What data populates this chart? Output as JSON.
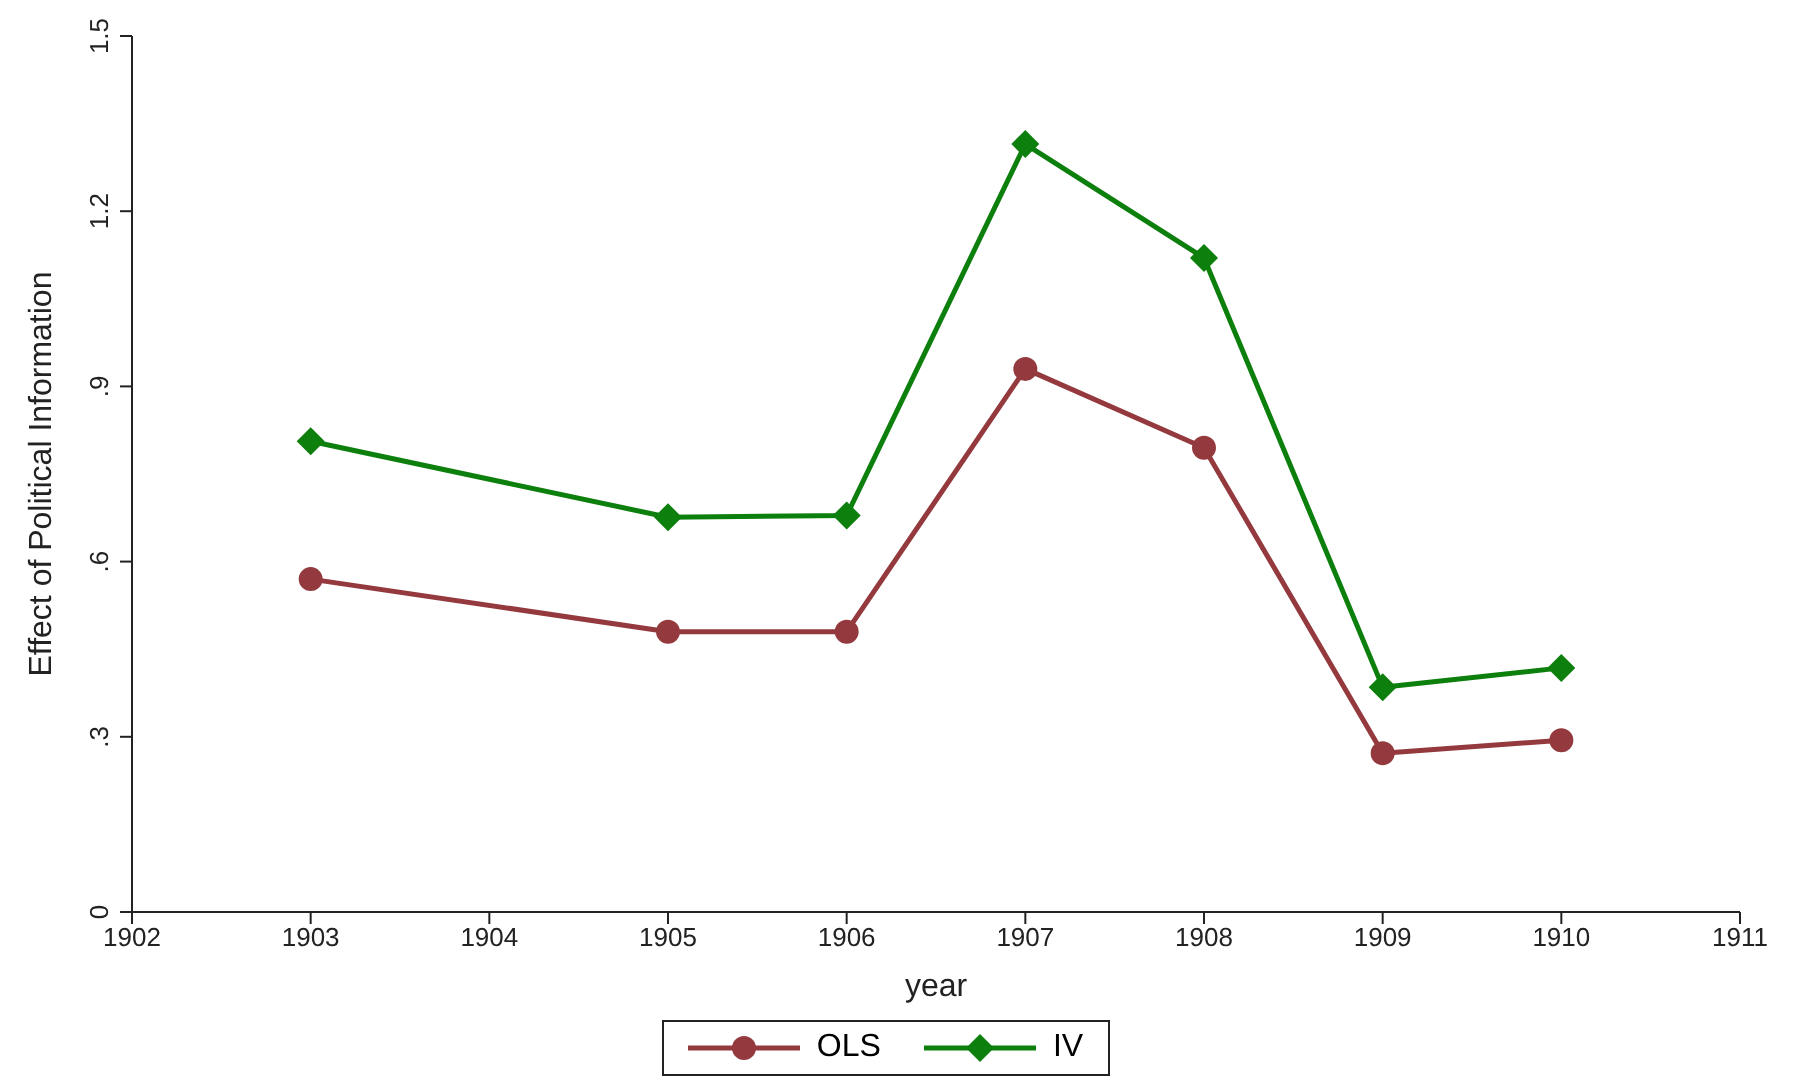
{
  "chart_data": {
    "type": "line",
    "xlabel": "year",
    "ylabel": "Effect of Political Information",
    "x": [
      1903,
      1905,
      1906,
      1907,
      1908,
      1909,
      1910
    ],
    "series": [
      {
        "name": "OLS",
        "color": "#943a3e",
        "marker": "circle",
        "values": [
          0.57,
          0.48,
          0.48,
          0.93,
          0.795,
          0.272,
          0.294
        ]
      },
      {
        "name": "IV",
        "color": "#0c7f0c",
        "marker": "diamond",
        "values": [
          0.806,
          0.676,
          0.679,
          1.315,
          1.12,
          0.385,
          0.418
        ]
      }
    ],
    "xlim": [
      1902,
      1911
    ],
    "xticks": [
      1902,
      1903,
      1904,
      1905,
      1906,
      1907,
      1908,
      1909,
      1910,
      1911
    ],
    "ylim": [
      0,
      1.5
    ],
    "yticks": [
      0,
      {
        "value": 0.3,
        "label": ".3"
      },
      {
        "value": 0.6,
        "label": ".6"
      },
      {
        "value": 0.9,
        "label": ".9"
      },
      {
        "value": 1.2,
        "label": "1.2"
      },
      {
        "value": 1.5,
        "label": "1.5"
      }
    ],
    "grid": false,
    "legend": "bottom",
    "line_style": "solid"
  }
}
